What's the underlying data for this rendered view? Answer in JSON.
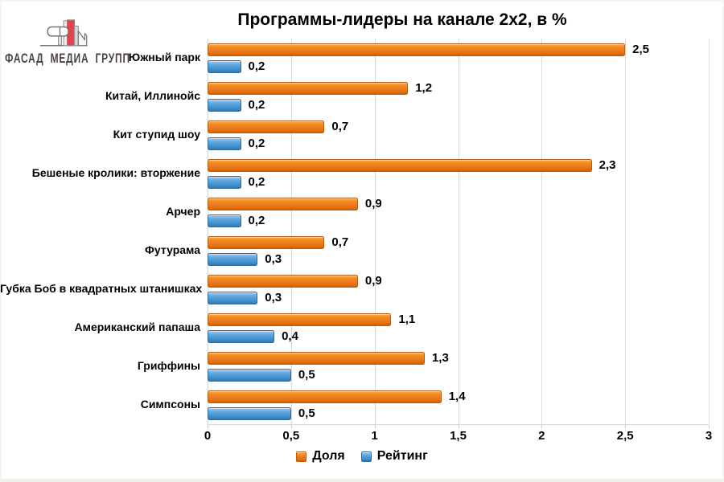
{
  "logo": {
    "company": "ФАСАД МЕДИА ГРУПП",
    "icon": "fasad-media-group-logo",
    "accent_color": "#E8414E"
  },
  "chart_data": {
    "type": "bar",
    "orientation": "horizontal",
    "title": "Программы-лидеры на канале 2х2, в %",
    "categories": [
      "Южный парк",
      "Китай, Иллинойс",
      "Кит ступид шоу",
      "Бешеные кролики: вторжение",
      "Арчер",
      "Футурама",
      "Губка Боб в квадратных штанишках",
      "Американский папаша",
      "Гриффины",
      "Симпсоны"
    ],
    "series": [
      {
        "name": "Доля",
        "color": "#ED7C1A",
        "values": [
          2.5,
          1.2,
          0.7,
          2.3,
          0.9,
          0.7,
          0.9,
          1.1,
          1.3,
          1.4
        ]
      },
      {
        "name": "Рейтинг",
        "color": "#4D98D2",
        "values": [
          0.2,
          0.2,
          0.2,
          0.2,
          0.2,
          0.3,
          0.3,
          0.4,
          0.5,
          0.5
        ]
      }
    ],
    "xlim": [
      0,
      3
    ],
    "xticks": [
      0,
      0.5,
      1,
      1.5,
      2,
      2.5,
      3
    ],
    "xtick_labels": [
      "0",
      "0,5",
      "1",
      "1,5",
      "2",
      "2,5",
      "3"
    ],
    "decimal_separator": ",",
    "grid": true,
    "value_labels": true,
    "legend_position": "bottom"
  }
}
